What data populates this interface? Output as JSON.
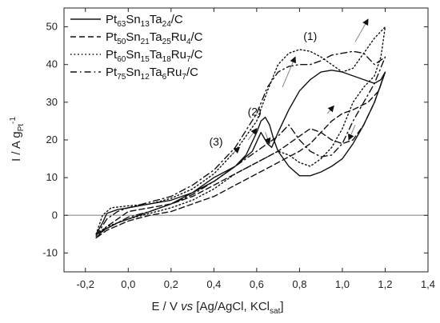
{
  "chart_data": {
    "type": "line",
    "title": "",
    "xlabel": {
      "prefix": "E / V ",
      "italic": "vs",
      "main": " [Ag/AgCl, KCl",
      "sub": "sat",
      "suffix": "]"
    },
    "ylabel": {
      "main": "I / A g",
      "sub": "Pt",
      "sup": "-1"
    },
    "xlim": [
      -0.3,
      1.4
    ],
    "ylim": [
      -15,
      55
    ],
    "xticks": [
      {
        "value": -0.2,
        "label": "-0,2"
      },
      {
        "value": 0.0,
        "label": "0,0"
      },
      {
        "value": 0.2,
        "label": "0,2"
      },
      {
        "value": 0.4,
        "label": "0,4"
      },
      {
        "value": 0.6,
        "label": "0,6"
      },
      {
        "value": 0.8,
        "label": "0,8"
      },
      {
        "value": 1.0,
        "label": "1,0"
      },
      {
        "value": 1.2,
        "label": "1,2"
      },
      {
        "value": 1.4,
        "label": "1,4"
      }
    ],
    "yticks": [
      {
        "value": -10,
        "label": "-10"
      },
      {
        "value": 0,
        "label": "0"
      },
      {
        "value": 10,
        "label": "10"
      },
      {
        "value": 20,
        "label": "20"
      },
      {
        "value": 30,
        "label": "30"
      },
      {
        "value": 40,
        "label": "40"
      },
      {
        "value": 50,
        "label": "50"
      }
    ],
    "zero_line": 0,
    "legend_position": "top-left",
    "series": [
      {
        "name_parts": [
          [
            "Pt",
            ""
          ],
          [
            "63",
            "sub"
          ],
          [
            "Sn",
            ""
          ],
          [
            "13",
            "sub"
          ],
          [
            "Ta",
            ""
          ],
          [
            "24",
            "sub"
          ],
          [
            "/C",
            ""
          ]
        ],
        "style": "solid",
        "points": [
          [
            -0.15,
            -5
          ],
          [
            -0.12,
            -2
          ],
          [
            -0.1,
            0.5
          ],
          [
            -0.05,
            1.5
          ],
          [
            0.0,
            2
          ],
          [
            0.1,
            3
          ],
          [
            0.2,
            4
          ],
          [
            0.3,
            6
          ],
          [
            0.4,
            9
          ],
          [
            0.5,
            13
          ],
          [
            0.55,
            16
          ],
          [
            0.6,
            22
          ],
          [
            0.62,
            25
          ],
          [
            0.64,
            26
          ],
          [
            0.66,
            24
          ],
          [
            0.68,
            20
          ],
          [
            0.7,
            17
          ],
          [
            0.75,
            13
          ],
          [
            0.8,
            10.5
          ],
          [
            0.85,
            10.5
          ],
          [
            0.9,
            11.5
          ],
          [
            0.95,
            13
          ],
          [
            1.0,
            15
          ],
          [
            1.05,
            19
          ],
          [
            1.1,
            24
          ],
          [
            1.15,
            30
          ],
          [
            1.2,
            38
          ],
          [
            1.18,
            36
          ],
          [
            1.15,
            35
          ],
          [
            1.1,
            36
          ],
          [
            1.05,
            37
          ],
          [
            1.0,
            38
          ],
          [
            0.95,
            38.5
          ],
          [
            0.9,
            38
          ],
          [
            0.85,
            36
          ],
          [
            0.8,
            33
          ],
          [
            0.75,
            28
          ],
          [
            0.7,
            22
          ],
          [
            0.67,
            18
          ],
          [
            0.65,
            19
          ],
          [
            0.62,
            22
          ],
          [
            0.58,
            17
          ],
          [
            0.5,
            13
          ],
          [
            0.4,
            10
          ],
          [
            0.3,
            6
          ],
          [
            0.2,
            3
          ],
          [
            0.1,
            1
          ],
          [
            0.0,
            -1
          ],
          [
            -0.05,
            -2
          ],
          [
            -0.1,
            -3.5
          ],
          [
            -0.15,
            -5
          ]
        ]
      },
      {
        "name_parts": [
          [
            "Pt",
            ""
          ],
          [
            "50",
            "sub"
          ],
          [
            "Sn",
            ""
          ],
          [
            "21",
            "sub"
          ],
          [
            "Ta",
            ""
          ],
          [
            "25",
            "sub"
          ],
          [
            "Ru",
            ""
          ],
          [
            "4",
            "sub"
          ],
          [
            "/C",
            ""
          ]
        ],
        "style": "dashed",
        "points": [
          [
            -0.15,
            -6
          ],
          [
            -0.1,
            -3
          ],
          [
            -0.05,
            -1
          ],
          [
            0.0,
            1
          ],
          [
            0.1,
            2
          ],
          [
            0.2,
            3
          ],
          [
            0.3,
            5
          ],
          [
            0.4,
            8
          ],
          [
            0.5,
            11
          ],
          [
            0.6,
            14
          ],
          [
            0.7,
            17
          ],
          [
            0.8,
            21
          ],
          [
            0.85,
            23
          ],
          [
            0.9,
            22
          ],
          [
            0.95,
            20
          ],
          [
            1.0,
            19
          ],
          [
            1.05,
            20
          ],
          [
            1.1,
            24
          ],
          [
            1.15,
            30
          ],
          [
            1.2,
            38
          ],
          [
            1.17,
            33
          ],
          [
            1.12,
            30
          ],
          [
            1.05,
            28
          ],
          [
            1.0,
            27
          ],
          [
            0.95,
            25
          ],
          [
            0.9,
            22
          ],
          [
            0.85,
            19
          ],
          [
            0.8,
            17
          ],
          [
            0.7,
            14
          ],
          [
            0.6,
            11
          ],
          [
            0.5,
            8
          ],
          [
            0.4,
            5
          ],
          [
            0.3,
            3
          ],
          [
            0.2,
            1
          ],
          [
            0.1,
            0
          ],
          [
            0.0,
            -1.5
          ],
          [
            -0.1,
            -4
          ],
          [
            -0.15,
            -6
          ]
        ]
      },
      {
        "name_parts": [
          [
            "Pt",
            ""
          ],
          [
            "60",
            "sub"
          ],
          [
            "Sn",
            ""
          ],
          [
            "15",
            "sub"
          ],
          [
            "Ta",
            ""
          ],
          [
            "18",
            "sub"
          ],
          [
            "Ru",
            ""
          ],
          [
            "7",
            "sub"
          ],
          [
            "/C",
            ""
          ]
        ],
        "style": "dotted",
        "points": [
          [
            -0.15,
            -5
          ],
          [
            -0.12,
            0
          ],
          [
            -0.08,
            2
          ],
          [
            0.0,
            2.5
          ],
          [
            0.1,
            3
          ],
          [
            0.2,
            4.5
          ],
          [
            0.3,
            7
          ],
          [
            0.4,
            11
          ],
          [
            0.5,
            17
          ],
          [
            0.6,
            25
          ],
          [
            0.65,
            33
          ],
          [
            0.7,
            40
          ],
          [
            0.75,
            43
          ],
          [
            0.8,
            44
          ],
          [
            0.85,
            43.5
          ],
          [
            0.9,
            42
          ],
          [
            0.95,
            40
          ],
          [
            1.0,
            38
          ],
          [
            1.05,
            39
          ],
          [
            1.1,
            43
          ],
          [
            1.15,
            47
          ],
          [
            1.2,
            50
          ],
          [
            1.18,
            42
          ],
          [
            1.15,
            37
          ],
          [
            1.1,
            34
          ],
          [
            1.05,
            30
          ],
          [
            1.0,
            23
          ],
          [
            0.95,
            18
          ],
          [
            0.9,
            15
          ],
          [
            0.85,
            13
          ],
          [
            0.8,
            14
          ],
          [
            0.75,
            16
          ],
          [
            0.7,
            17
          ],
          [
            0.6,
            14
          ],
          [
            0.5,
            11
          ],
          [
            0.4,
            7
          ],
          [
            0.3,
            4
          ],
          [
            0.2,
            2
          ],
          [
            0.1,
            0.5
          ],
          [
            0.0,
            -1
          ],
          [
            -0.1,
            -3
          ],
          [
            -0.15,
            -5
          ]
        ]
      },
      {
        "name_parts": [
          [
            "Pt",
            ""
          ],
          [
            "75",
            "sub"
          ],
          [
            "Sn",
            ""
          ],
          [
            "12",
            "sub"
          ],
          [
            "Ta",
            ""
          ],
          [
            "6",
            "sub"
          ],
          [
            "Ru",
            ""
          ],
          [
            "7",
            "sub"
          ],
          [
            "/C",
            ""
          ]
        ],
        "style": "dashdot",
        "points": [
          [
            -0.15,
            -5.5
          ],
          [
            -0.1,
            -1
          ],
          [
            -0.05,
            1
          ],
          [
            0.0,
            2
          ],
          [
            0.1,
            3.5
          ],
          [
            0.2,
            5
          ],
          [
            0.3,
            8
          ],
          [
            0.4,
            12
          ],
          [
            0.5,
            18
          ],
          [
            0.6,
            27
          ],
          [
            0.65,
            34
          ],
          [
            0.7,
            38
          ],
          [
            0.75,
            39.5
          ],
          [
            0.8,
            40
          ],
          [
            0.85,
            40
          ],
          [
            0.9,
            41
          ],
          [
            0.95,
            42.5
          ],
          [
            1.0,
            43
          ],
          [
            1.05,
            43.5
          ],
          [
            1.1,
            43
          ],
          [
            1.15,
            40
          ],
          [
            1.2,
            42
          ],
          [
            1.15,
            35
          ],
          [
            1.1,
            30
          ],
          [
            1.05,
            25
          ],
          [
            1.0,
            19
          ],
          [
            0.95,
            16
          ],
          [
            0.9,
            15.5
          ],
          [
            0.85,
            17
          ],
          [
            0.8,
            20
          ],
          [
            0.75,
            24
          ],
          [
            0.7,
            21
          ],
          [
            0.6,
            17
          ],
          [
            0.5,
            13
          ],
          [
            0.4,
            9
          ],
          [
            0.3,
            5.5
          ],
          [
            0.2,
            3
          ],
          [
            0.1,
            1
          ],
          [
            0.0,
            -0.5
          ],
          [
            -0.1,
            -3.5
          ],
          [
            -0.15,
            -5.5
          ]
        ]
      }
    ],
    "annotations": [
      {
        "text": "(1)",
        "x": 0.85,
        "y": 46.5
      },
      {
        "text": "(2)",
        "x": 0.59,
        "y": 26.5
      },
      {
        "text": "(3)",
        "x": 0.41,
        "y": 18.5
      }
    ],
    "arrows": [
      {
        "from": [
          0.72,
          34
        ],
        "to": [
          0.78,
          42
        ]
      },
      {
        "from": [
          1.06,
          46
        ],
        "to": [
          1.12,
          52
        ]
      },
      {
        "from": [
          0.56,
          20
        ],
        "to": [
          0.6,
          23
        ]
      },
      {
        "from": [
          0.64,
          22
        ],
        "to": [
          0.66,
          19
        ]
      },
      {
        "from": [
          0.48,
          16
        ],
        "to": [
          0.52,
          18
        ]
      },
      {
        "from": [
          1.06,
          24
        ],
        "to": [
          1.03,
          20
        ]
      },
      {
        "from": [
          0.93,
          27
        ],
        "to": [
          0.96,
          29
        ]
      }
    ]
  }
}
